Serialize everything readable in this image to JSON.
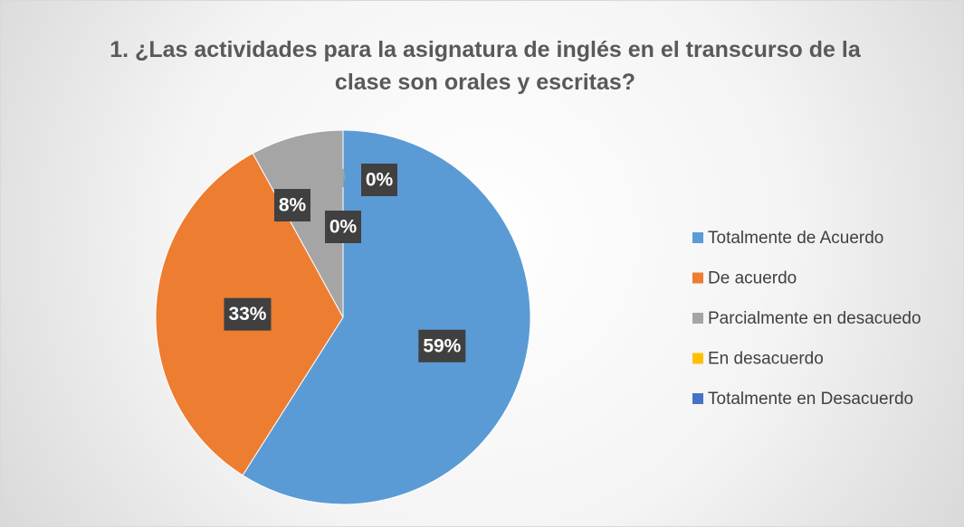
{
  "chart_data": {
    "type": "pie",
    "title": "1. ¿Las actividades para la asignatura de inglés en el transcurso de la clase son orales y escritas?",
    "categories": [
      "Totalmente de Acuerdo",
      "De acuerdo",
      "Parcialmente en desacuedo",
      "En desacuerdo",
      "Totalmente en Desacuerdo"
    ],
    "values": [
      59,
      33,
      8,
      0,
      0
    ],
    "value_labels": [
      "59%",
      "33%",
      "8%",
      "0%",
      "0%"
    ],
    "colors": [
      "#5b9bd5",
      "#ed7d31",
      "#a5a5a5",
      "#ffc000",
      "#4472c4"
    ],
    "legend": "right"
  }
}
